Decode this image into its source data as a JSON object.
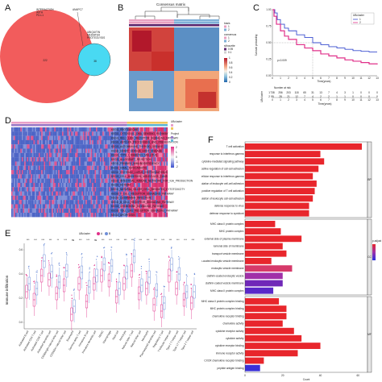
{
  "panels": {
    "A": {
      "letter": "A",
      "venn": {
        "left_label": "INTERACTION\nWITH\nPD-L1",
        "right_label": "UBIQUITIN\nMEDIATED\nPROTEOLYSIS",
        "overlap_label": "ANAPC7",
        "left_count": "222",
        "right_count": "38",
        "left_color": "#f25c5c",
        "right_color": "#49d9f2"
      }
    },
    "B": {
      "letter": "B",
      "title": "Consensus matrix",
      "legend_groups": [
        {
          "title": "basis",
          "items": [
            {
              "label": "1",
              "color": "#e8a0c0"
            },
            {
              "label": "2",
              "color": "#7fb0d8"
            }
          ]
        },
        {
          "title": "consensus",
          "items": [
            {
              "label": "1",
              "color": "#e8a0c0"
            },
            {
              "label": "2",
              "color": "#7fb0d8"
            }
          ]
        },
        {
          "title": "silhouette",
          "items": [
            {
              "label": "0.95",
              "color": "#5e2a70"
            },
            {
              "label": "0.1",
              "color": "#d0d0d0"
            }
          ]
        }
      ],
      "colorbar_ticks": [
        "1",
        "0.8",
        "0.6",
        "0.4",
        "0.2",
        "0"
      ]
    },
    "C": {
      "letter": "C",
      "ylabel": "Survival probability",
      "xlabel": "Time(years)",
      "pvalue": "p=0.009",
      "legend_title": "UBcluster",
      "legend_items": [
        {
          "label": "1",
          "color": "#3a4fcf"
        },
        {
          "label": "2",
          "color": "#e0308a"
        }
      ],
      "risk_title": "Number at risk",
      "risk_rows": [
        {
          "name": "1",
          "values": [
            "738",
            "256",
            "203",
            "118",
            "65",
            "31",
            "13",
            "7",
            "4",
            "3",
            "1",
            "0",
            "0",
            "0"
          ]
        },
        {
          "name": "2",
          "values": [
            "55",
            "28",
            "21",
            "12",
            "7",
            "4",
            "2",
            "2",
            "1",
            "1",
            "0",
            "0",
            "0",
            "0"
          ]
        }
      ],
      "x_ticks": [
        "0",
        "1",
        "2",
        "3",
        "4",
        "5",
        "6",
        "7",
        "8",
        "9",
        "10",
        "11",
        "12",
        "13"
      ],
      "y_ticks": [
        "1.00",
        "0.75",
        "0.50",
        "0.25",
        "0.00"
      ]
    },
    "D": {
      "letter": "D",
      "legend": [
        "UBcluster",
        "Project"
      ],
      "rows": [
        "KEGG_PROTEASOME",
        "KEGG_CYTOSOLIC_DNA_SENSING_PATHWAY",
        "KEGG_RIG_I_LIKE_RECEPTOR_SIGNALING_PATHWAY",
        "KEGG_ANTIGEN_PROCESSING_AND_PRESENTATION",
        "KEGG_AUTOIMMUNE_THYROID_DISEASE",
        "KEGG_GRAFT_VERSUS_HOST_DISEASE",
        "KEGG_TYPE_I_DIABETES_MELLITUS",
        "KEGG_ALLOGRAFT_REJECTION",
        "KEGG_PRIMARY_IMMUNODEFICIENCY",
        "KEGG_VIRAL_MYOCARDITIS",
        "KEGG_SYSTEMIC_LUPUS_ERYTHEMATOSUS",
        "KEGG_CELL_ADHESION_MOLECULES_CAMS",
        "KEGG_INTESTINAL_IMMUNE_NETWORK_FOR_IGA_PRODUCTION",
        "KEGG_ASTHMA",
        "KEGG_NATURAL_KILLER_CELL_MEDIATED_CYTOTOXICITY",
        "KEGG_T_CELL_RECEPTOR_SIGNALING_PATHWAY",
        "KEGG_LEISHMANIA_INFECTION",
        "KEGG_B_CELL_RECEPTOR_SIGNALING_PATHWAY",
        "KEGG_CHEMOKINE_SIGNALING_PATHWAY",
        "KEGG_TOLL_LIKE_RECEPTOR_SIGNALING_PATHWAY",
        "KEGG_APOPTOSIS"
      ],
      "scale_ticks": [
        "2",
        "1",
        "0",
        "-1",
        "-2"
      ]
    },
    "E": {
      "letter": "E",
      "ylabel": "Immune infiltration",
      "legend_title": "UBcluster",
      "legend_items": [
        {
          "label": "A",
          "color": "#e0308a"
        },
        {
          "label": "B",
          "color": "#6f8fd8"
        }
      ],
      "sig": [
        "***",
        "***",
        "***",
        "***",
        "**",
        "***",
        "ns",
        "***",
        "***",
        "ns",
        "***",
        "***",
        "***",
        "***",
        "***",
        "***",
        "***",
        "***",
        "***",
        "***",
        "***",
        "***",
        "***"
      ],
      "cells": [
        "Activated B cell",
        "Activated CD4 T cell",
        "Activated CD8 T cell",
        "Activated dendritic cell",
        "CD56bright natural killer cell",
        "CD56dim natural killer cell",
        "Eosinophil",
        "Gamma delta T cell",
        "Immature B cell",
        "Immature dendritic cell",
        "MDSC",
        "Macrophage",
        "Mast cell",
        "Monocyte",
        "Natural killer T cell",
        "Natural killer cell",
        "Neutrophil",
        "Plasmacytoid dendritic cell",
        "Regulatory T cell",
        "T follicular helper cell",
        "Type 1 T helper cell",
        "Type 17 T helper cell",
        "Type 2 T helper cell"
      ],
      "y_ticks": [
        "0.6",
        "0.4",
        "0.2",
        "0.0"
      ]
    },
    "F": {
      "letter": "F",
      "xlabel": "Count",
      "x_ticks": [
        "0",
        "20",
        "40",
        "60"
      ],
      "legend_title": "p.adjust",
      "facets": [
        "BP",
        "CC",
        "MF"
      ],
      "groups": [
        {
          "facet": "BP",
          "terms": [
            {
              "label": "T cell activation",
              "count": 62,
              "color": "#e8262c"
            },
            {
              "label": "response to interferon-gamma",
              "count": 40,
              "color": "#e8262c"
            },
            {
              "label": "cytokine-mediated signaling pathway",
              "count": 42,
              "color": "#e8262c"
            },
            {
              "label": "positive regulation of cell-cell adhesion",
              "count": 39,
              "color": "#e8262c"
            },
            {
              "label": "cellular response to interferon-gamma",
              "count": 36,
              "color": "#e8262c"
            },
            {
              "label": "positive regulation of leukocyte cell-cell adhesion",
              "count": 38,
              "color": "#e8262c"
            },
            {
              "label": "positive regulation of T cell activation",
              "count": 37,
              "color": "#e8262c"
            },
            {
              "label": "positive regulation of leukocyte cell-cell adhesion",
              "count": 36,
              "color": "#e8262c"
            },
            {
              "label": "defense response to virus",
              "count": 34,
              "color": "#e8262c"
            },
            {
              "label": "defense response to symbiont",
              "count": 34,
              "color": "#e8262c"
            }
          ]
        },
        {
          "facet": "CC",
          "terms": [
            {
              "label": "MHC class II protein complex",
              "count": 16,
              "color": "#e8262c"
            },
            {
              "label": "MHC protein complex",
              "count": 19,
              "color": "#e8262c"
            },
            {
              "label": "external side of plasma membrane",
              "count": 30,
              "color": "#e8262c"
            },
            {
              "label": "lumenal side of membrane",
              "count": 20,
              "color": "#e8262c"
            },
            {
              "label": "transport vesicle membrane",
              "count": 22,
              "color": "#e8262c"
            },
            {
              "label": "clathrin-coated endocytic vesicle membrane",
              "count": 14,
              "color": "#e8262c"
            },
            {
              "label": "endocytic vesicle membrane",
              "count": 25,
              "color": "#d63a6a"
            },
            {
              "label": "clathrin-coated endocytic vesicle",
              "count": 20,
              "color": "#a030a8"
            },
            {
              "label": "clathrin-coated vesicle membrane",
              "count": 20,
              "color": "#7028b8"
            },
            {
              "label": "MHC class II protein complex",
              "count": 15,
              "color": "#5a28c8"
            }
          ]
        },
        {
          "facet": "MF",
          "terms": [
            {
              "label": "MHC class II protein complex binding",
              "count": 18,
              "color": "#e8262c"
            },
            {
              "label": "MHC protein complex binding",
              "count": 22,
              "color": "#e8262c"
            },
            {
              "label": "chemokine receptor binding",
              "count": 22,
              "color": "#e8262c"
            },
            {
              "label": "chemokine activity",
              "count": 20,
              "color": "#e8262c"
            },
            {
              "label": "cytokine receptor activity",
              "count": 26,
              "color": "#e8262c"
            },
            {
              "label": "cytokine activity",
              "count": 30,
              "color": "#e8262c"
            },
            {
              "label": "cytokine receptor binding",
              "count": 40,
              "color": "#e8262c"
            },
            {
              "label": "immune receptor activity",
              "count": 28,
              "color": "#e8262c"
            },
            {
              "label": "CXCR chemokine receptor binding",
              "count": 10,
              "color": "#e8262c"
            },
            {
              "label": "peptide antigen binding",
              "count": 8,
              "color": "#3a30d8"
            }
          ]
        }
      ]
    }
  }
}
